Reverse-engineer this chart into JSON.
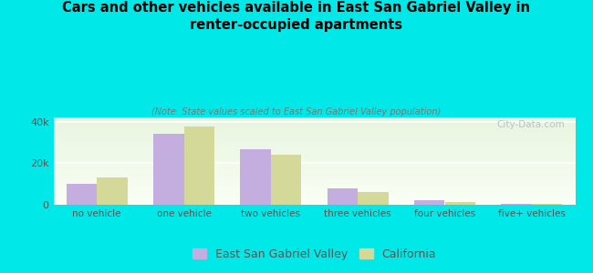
{
  "title": "Cars and other vehicles available in East San Gabriel Valley in\nrenter-occupied apartments",
  "subtitle": "(Note: State values scaled to East San Gabriel Valley population)",
  "categories": [
    "no vehicle",
    "one vehicle",
    "two vehicles",
    "three vehicles",
    "four vehicles",
    "five+ vehicles"
  ],
  "esgv_values": [
    10000,
    34000,
    26500,
    8000,
    2000,
    400
  ],
  "ca_values": [
    13000,
    37500,
    24000,
    6000,
    1500,
    600
  ],
  "esgv_color": "#c4aee0",
  "ca_color": "#d4d99a",
  "background_outer": "#00e8e8",
  "background_plot_top": "#e8f5e0",
  "background_plot_bottom": "#f8fff0",
  "ylim": [
    0,
    42000
  ],
  "yticks": [
    0,
    20000,
    40000
  ],
  "ytick_labels": [
    "0",
    "20k",
    "40k"
  ],
  "bar_width": 0.35,
  "legend_labels": [
    "East San Gabriel Valley",
    "California"
  ],
  "watermark": "City-Data.com",
  "title_fontsize": 10.5,
  "subtitle_fontsize": 7
}
